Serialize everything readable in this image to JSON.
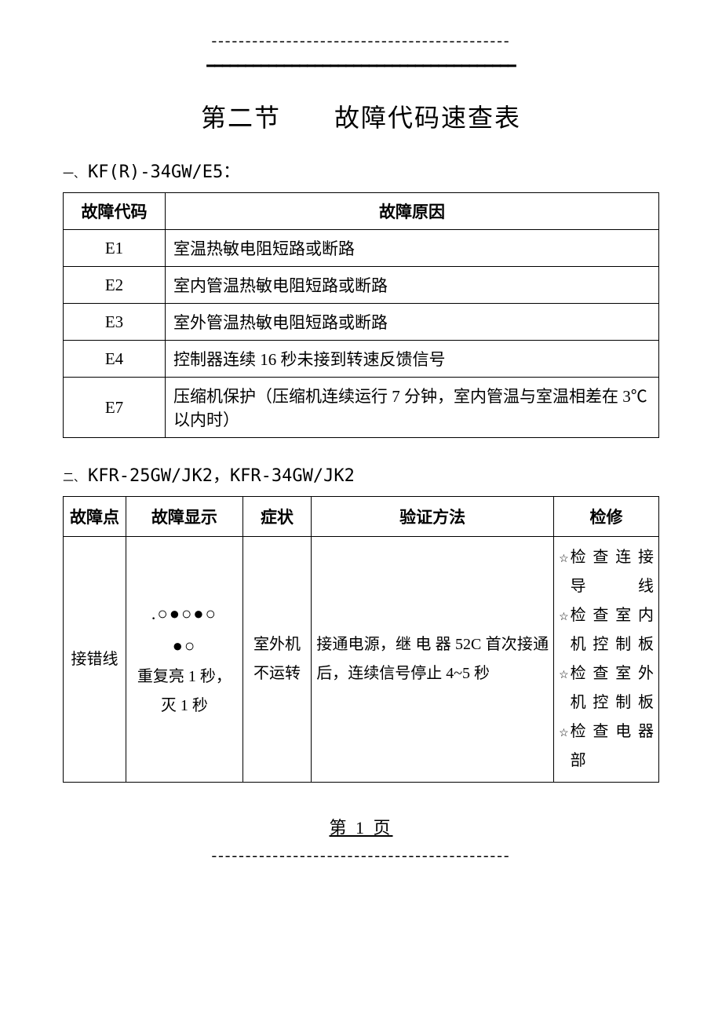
{
  "decor": {
    "top_dashes": "--------------------------------------------",
    "top_double": "━━━━━━━━━━━━━━━━━━━━━━━━━━━━━━━━━━━━━━━━",
    "bottom_dashes": "--------------------------------------------"
  },
  "title": "第二节　　故障代码速查表",
  "section1": {
    "num": "一、",
    "name": "KF(R)-34GW/E5：",
    "headers": [
      "故障代码",
      "故障原因"
    ],
    "rows": [
      {
        "code": "E1",
        "reason": "室温热敏电阻短路或断路"
      },
      {
        "code": "E2",
        "reason": "室内管温热敏电阻短路或断路"
      },
      {
        "code": "E3",
        "reason": "室外管温热敏电阻短路或断路"
      },
      {
        "code": "E4",
        "reason": "控制器连续 16 秒未接到转速反馈信号"
      },
      {
        "code": "E7",
        "reason": "压缩机保护（压缩机连续运行 7 分钟，室内管温与室温相差在 3℃以内时）"
      }
    ]
  },
  "section2": {
    "num": "二、",
    "name": "KFR-25GW/JK2，KFR-34GW/JK2",
    "headers": {
      "point": "故障点",
      "display": "故障显示",
      "symptom": "症状",
      "verify": "验证方法",
      "repair": "检修"
    },
    "row": {
      "point": "接错线",
      "display": {
        "pattern1": ".○●○●○",
        "pattern2": "●○",
        "note": "重复亮 1 秒，灭 1 秒"
      },
      "symptom": "室外机不运转",
      "verify": "接通电源，继 电 器 52C 首次接通后，连续信号停止 4~5 秒",
      "repair": [
        "检 查 连 接 导线",
        "检 查 室 内 机控制板",
        "检 查 室 外 机控制板",
        "检 查 电 器 部"
      ]
    }
  },
  "footer": "第 1 页"
}
